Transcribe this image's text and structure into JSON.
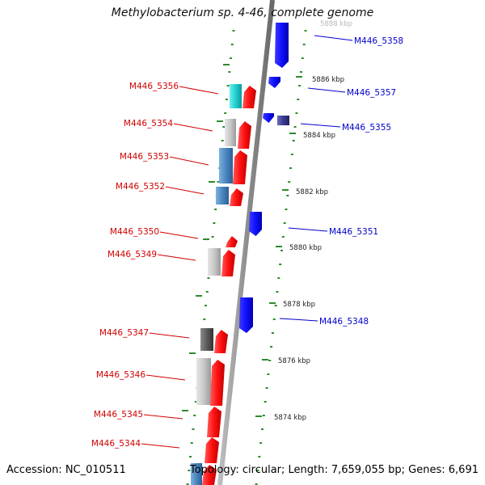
{
  "title": "Methylobacterium sp. 4-46, complete genome",
  "footer": {
    "accession": "Accession: NC_010511",
    "summary": "Topology: circular; Length: 7,659,055 bp; Genes: 6,691"
  },
  "colors": {
    "backbone": "#8f8f8f",
    "tick": "#2e8b2e",
    "left_label": "#d00000",
    "right_label": "#0000cc"
  },
  "scale_labels": [
    "5888 kbp",
    "5886 kbp",
    "5884 kbp",
    "5882 kbp",
    "5880 kbp",
    "5878 kbp",
    "5876 kbp",
    "5874 kbp"
  ],
  "left_genes": [
    "M446_5356",
    "M446_5354",
    "M446_5353",
    "M446_5352",
    "M446_5350",
    "M446_5349",
    "M446_5347",
    "M446_5346",
    "M446_5345",
    "M446_5344"
  ],
  "right_genes": [
    "M446_5358",
    "M446_5357",
    "M446_5355",
    "M446_5351",
    "M446_5348"
  ]
}
